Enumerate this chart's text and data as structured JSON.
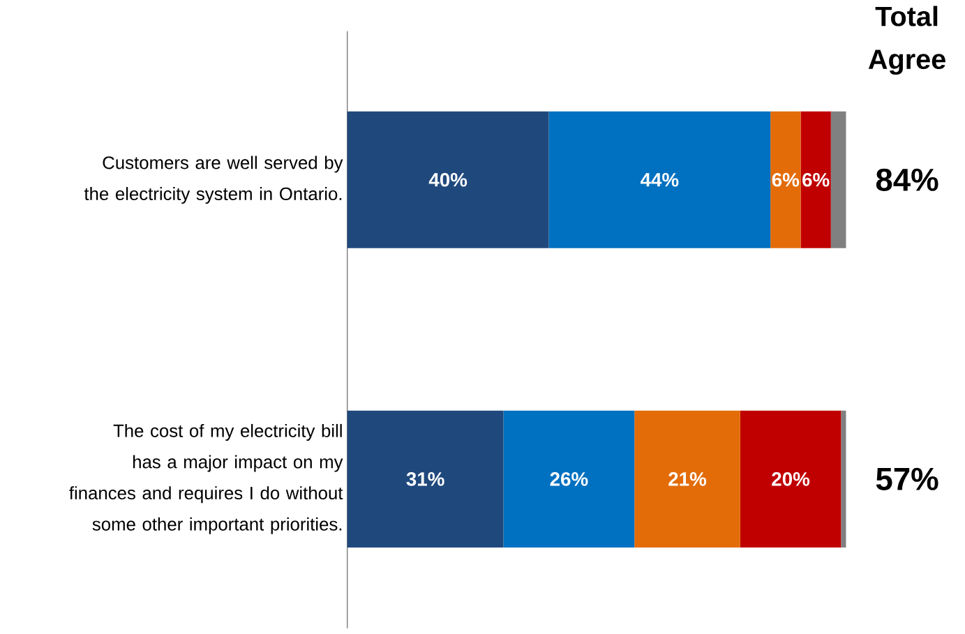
{
  "chart_data": {
    "type": "bar",
    "orientation": "horizontal",
    "stacked": true,
    "categories": [
      "Customers are well served by the electricity system in Ontario.",
      "The cost of my electricity bill has a major impact on my finances and requires I do without some other important priorities."
    ],
    "series": [
      {
        "color": "#1f497d",
        "values": [
          40,
          31
        ],
        "value_labels": [
          "40%",
          "31%"
        ]
      },
      {
        "color": "#0070c0",
        "values": [
          44,
          26
        ],
        "value_labels": [
          "44%",
          "26%"
        ]
      },
      {
        "color": "#e36c09",
        "values": [
          6,
          21
        ],
        "value_labels": [
          "6%",
          "21%"
        ]
      },
      {
        "color": "#c00000",
        "values": [
          6,
          20
        ],
        "value_labels": [
          "6%",
          "20%"
        ]
      },
      {
        "color": "#808080",
        "values": [
          3,
          1
        ],
        "value_labels": [
          null,
          null
        ]
      }
    ],
    "tick_labels": "y",
    "annotations": [
      "Total Agree",
      "84%",
      "57%"
    ]
  }
}
